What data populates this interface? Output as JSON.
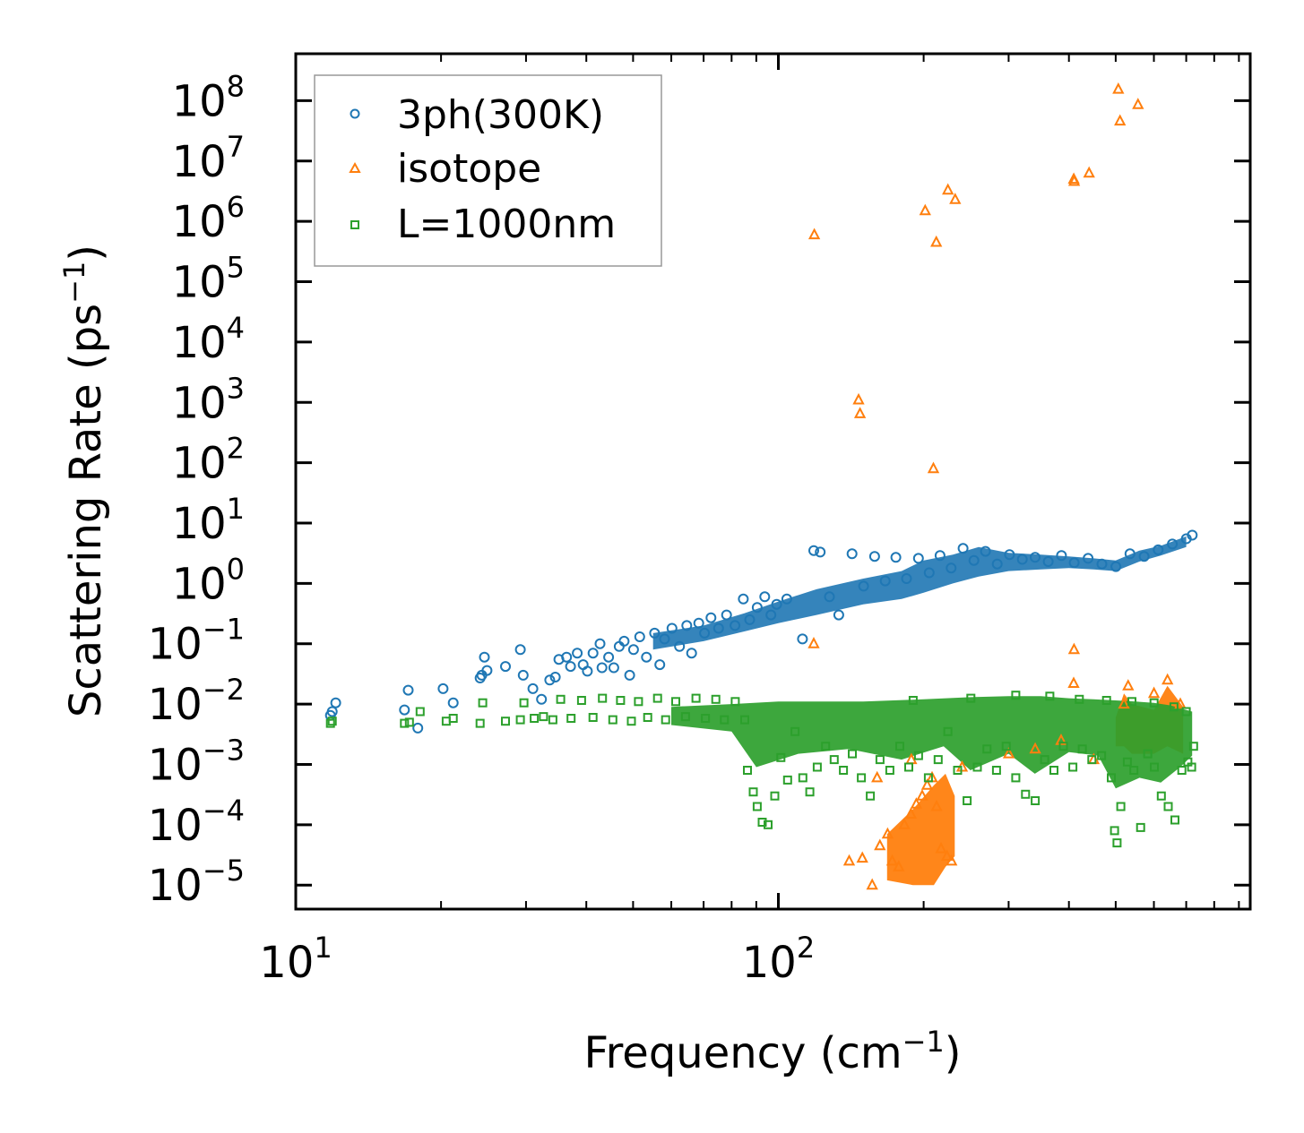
{
  "chart_data": {
    "type": "scatter",
    "title": "",
    "xlabel": "Frequency (cm",
    "xlabel_exp": "−1",
    "xlabel_close": ")",
    "ylabel": "Scattering Rate (ps",
    "ylabel_exp": "−1",
    "ylabel_close": ")",
    "xscale": "log",
    "yscale": "log",
    "xlim": [
      10,
      950
    ],
    "ylim": [
      4e-06,
      600000000
    ],
    "x_ticks": [
      {
        "value": 10,
        "base": "10",
        "exp": "1"
      },
      {
        "value": 100,
        "base": "10",
        "exp": "2"
      }
    ],
    "y_ticks": [
      {
        "value": 100000000.0,
        "base": "10",
        "exp": "8"
      },
      {
        "value": 10000000.0,
        "base": "10",
        "exp": "7"
      },
      {
        "value": 1000000.0,
        "base": "10",
        "exp": "6"
      },
      {
        "value": 100000.0,
        "base": "10",
        "exp": "5"
      },
      {
        "value": 10000.0,
        "base": "10",
        "exp": "4"
      },
      {
        "value": 1000.0,
        "base": "10",
        "exp": "3"
      },
      {
        "value": 100.0,
        "base": "10",
        "exp": "2"
      },
      {
        "value": 10.0,
        "base": "10",
        "exp": "1"
      },
      {
        "value": 1.0,
        "base": "10",
        "exp": "0"
      },
      {
        "value": 0.1,
        "base": "10",
        "exp": "−1"
      },
      {
        "value": 0.01,
        "base": "10",
        "exp": "−2"
      },
      {
        "value": 0.001,
        "base": "10",
        "exp": "−3"
      },
      {
        "value": 0.0001,
        "base": "10",
        "exp": "−4"
      },
      {
        "value": 1e-05,
        "base": "10",
        "exp": "−5"
      }
    ],
    "legend_position": "top-left",
    "series": [
      {
        "name": "3ph(300K)",
        "marker": "circle",
        "color": "#1f77b4",
        "points": [
          [
            11.8,
            0.0065
          ],
          [
            11.9,
            0.0075
          ],
          [
            12.1,
            0.0105
          ],
          [
            16.8,
            0.008
          ],
          [
            17.1,
            0.017
          ],
          [
            17.9,
            0.004
          ],
          [
            20.2,
            0.018
          ],
          [
            21.2,
            0.0105
          ],
          [
            24.1,
            0.027
          ],
          [
            24.3,
            0.03
          ],
          [
            24.6,
            0.06
          ],
          [
            24.9,
            0.036
          ],
          [
            27.2,
            0.042
          ],
          [
            29.2,
            0.08
          ],
          [
            29.6,
            0.03
          ],
          [
            31,
            0.018
          ],
          [
            32.3,
            0.012
          ],
          [
            33.6,
            0.025
          ],
          [
            34.5,
            0.028
          ],
          [
            35.1,
            0.055
          ],
          [
            36.4,
            0.06
          ],
          [
            37.1,
            0.042
          ],
          [
            38.3,
            0.07
          ],
          [
            39.4,
            0.045
          ],
          [
            40.2,
            0.035
          ],
          [
            41.3,
            0.07
          ],
          [
            42.7,
            0.1
          ],
          [
            43.1,
            0.04
          ],
          [
            44.5,
            0.06
          ],
          [
            45.6,
            0.04
          ],
          [
            46.8,
            0.09
          ],
          [
            47.9,
            0.11
          ],
          [
            49.2,
            0.03
          ],
          [
            50.1,
            0.08
          ],
          [
            51.6,
            0.13
          ],
          [
            53.3,
            0.06
          ],
          [
            55.4,
            0.15
          ],
          [
            56.8,
            0.045
          ],
          [
            58.1,
            0.12
          ],
          [
            60.2,
            0.18
          ],
          [
            62.4,
            0.09
          ],
          [
            64.6,
            0.2
          ],
          [
            66.1,
            0.07
          ],
          [
            68.4,
            0.22
          ],
          [
            70.3,
            0.15
          ],
          [
            72.5,
            0.27
          ],
          [
            75.2,
            0.18
          ],
          [
            78.1,
            0.3
          ],
          [
            81.3,
            0.2
          ],
          [
            84.6,
            0.55
          ],
          [
            87.2,
            0.25
          ],
          [
            90.4,
            0.4
          ],
          [
            93.7,
            0.6
          ],
          [
            96.5,
            0.3
          ],
          [
            99.2,
            0.45
          ],
          [
            104.1,
            0.55
          ],
          [
            112.2,
            0.12
          ],
          [
            118.4,
            3.5
          ],
          [
            122.1,
            3.3
          ],
          [
            127.6,
            0.6
          ],
          [
            133.4,
            0.3
          ],
          [
            142.1,
            3.1
          ],
          [
            150.2,
            0.9
          ],
          [
            158.3,
            2.8
          ],
          [
            166.5,
            1.1
          ],
          [
            175.2,
            2.7
          ],
          [
            184.3,
            1.2
          ],
          [
            195.1,
            2.6
          ],
          [
            205.4,
            1.5
          ],
          [
            216.3,
            2.9
          ],
          [
            228.1,
            1.8
          ],
          [
            241.4,
            3.8
          ],
          [
            254.2,
            2.4
          ],
          [
            268.6,
            3.4
          ],
          [
            284.1,
            2.1
          ],
          [
            301.3,
            3
          ],
          [
            320.2,
            2.5
          ],
          [
            340.5,
            2.7
          ],
          [
            362.4,
            2.3
          ],
          [
            386.1,
            2.9
          ],
          [
            410.2,
            2.2
          ],
          [
            438.3,
            2.6
          ],
          [
            468.1,
            2.1
          ],
          [
            500.4,
            1.9
          ],
          [
            535.2,
            3.1
          ],
          [
            572.6,
            2.8
          ],
          [
            612.4,
            3.6
          ],
          [
            655.2,
            4.5
          ],
          [
            700.3,
            5.5
          ],
          [
            720.5,
            6.3
          ]
        ]
      },
      {
        "name": "isotope",
        "marker": "triangle",
        "color": "#ff7f0e",
        "points": [
          [
            118.7,
            600000
          ],
          [
            146.6,
            1100
          ],
          [
            147.6,
            650
          ],
          [
            201.5,
            1500000
          ],
          [
            212.4,
            450000
          ],
          [
            209.5,
            80
          ],
          [
            224.6,
            3300000
          ],
          [
            232.5,
            2300000
          ],
          [
            409.4,
            5000000
          ],
          [
            410.2,
            4600000
          ],
          [
            440.3,
            6300000
          ],
          [
            506.2,
            155000000
          ],
          [
            510.4,
            46000000
          ],
          [
            556.3,
            86000000
          ],
          [
            118.4,
            0.1
          ],
          [
            409.8,
            0.08
          ],
          [
            409.1,
            0.022
          ],
          [
            140.2,
            2.5e-05
          ],
          [
            149.3,
            2.8e-05
          ],
          [
            156.5,
            1e-05
          ],
          [
            162.3,
            4.5e-05
          ],
          [
            168.4,
            7e-05
          ],
          [
            172.1,
            2.5e-05
          ],
          [
            177.6,
            2e-05
          ],
          [
            182.4,
            0.0001
          ],
          [
            188.2,
            0.00015
          ],
          [
            193.1,
            0.00022
          ],
          [
            198.6,
            0.0003
          ],
          [
            203.4,
            0.00045
          ],
          [
            208.2,
            0.0006
          ],
          [
            212.7,
            0.0002
          ],
          [
            217.3,
            4e-05
          ],
          [
            223.5,
            3e-05
          ],
          [
            228.4,
            2.5e-05
          ],
          [
            160.2,
            0.0006
          ],
          [
            188.6,
            0.0012
          ],
          [
            240.3,
            0.0009
          ],
          [
            300.2,
            0.0015
          ],
          [
            340.6,
            0.0018
          ],
          [
            385.4,
            0.0025
          ],
          [
            450.3,
            0.0012
          ],
          [
            520.1,
            0.01
          ],
          [
            530.6,
            0.02
          ],
          [
            600.2,
            0.015
          ],
          [
            640.3,
            0.025
          ],
          [
            680.5,
            0.01
          ]
        ]
      },
      {
        "name": "L=1000nm",
        "marker": "square",
        "color": "#2ca02c",
        "points": [
          [
            11.8,
            0.0048
          ],
          [
            11.9,
            0.0052
          ],
          [
            16.8,
            0.0048
          ],
          [
            17.2,
            0.005
          ],
          [
            18.1,
            0.0075
          ],
          [
            20.5,
            0.0052
          ],
          [
            21.2,
            0.0058
          ],
          [
            24.1,
            0.0048
          ],
          [
            24.4,
            0.0105
          ],
          [
            27.2,
            0.0052
          ],
          [
            29.2,
            0.0055
          ],
          [
            29.7,
            0.0105
          ],
          [
            31.2,
            0.0058
          ],
          [
            32.6,
            0.0062
          ],
          [
            34.1,
            0.0055
          ],
          [
            35.4,
            0.012
          ],
          [
            37.2,
            0.0058
          ],
          [
            39.1,
            0.0115
          ],
          [
            41.3,
            0.006
          ],
          [
            43.2,
            0.0125
          ],
          [
            45.4,
            0.0055
          ],
          [
            47.1,
            0.0115
          ],
          [
            49.6,
            0.0052
          ],
          [
            51.3,
            0.011
          ],
          [
            53.6,
            0.006
          ],
          [
            56.2,
            0.0125
          ],
          [
            58.4,
            0.0055
          ],
          [
            61.3,
            0.011
          ],
          [
            64.2,
            0.0062
          ],
          [
            67.5,
            0.0125
          ],
          [
            70.6,
            0.0058
          ],
          [
            74.2,
            0.012
          ],
          [
            77.3,
            0.0055
          ],
          [
            81.4,
            0.011
          ],
          [
            85.2,
            0.0055
          ],
          [
            86.3,
            0.0008
          ],
          [
            88.7,
            0.00035
          ],
          [
            90.4,
            0.0002
          ],
          [
            92.6,
            0.00011
          ],
          [
            95.2,
            0.0001
          ],
          [
            98.3,
            0.0003
          ],
          [
            101.2,
            0.0013
          ],
          [
            104.5,
            0.00055
          ],
          [
            108.3,
            0.0035
          ],
          [
            112.4,
            0.0006
          ],
          [
            116.2,
            0.00035
          ],
          [
            120.4,
            0.0009
          ],
          [
            125.3,
            0.002
          ],
          [
            130.5,
            0.0012
          ],
          [
            136.4,
            0.0008
          ],
          [
            142.3,
            0.0015
          ],
          [
            148.6,
            0.0006
          ],
          [
            155.1,
            0.0003
          ],
          [
            162.4,
            0.0012
          ],
          [
            170.2,
            0.0008
          ],
          [
            178.5,
            0.002
          ],
          [
            186.3,
            0.0009
          ],
          [
            195.2,
            0.0014
          ],
          [
            204.6,
            0.0006
          ],
          [
            214.3,
            0.0012
          ],
          [
            224.5,
            0.0035
          ],
          [
            235.2,
            0.0008
          ],
          [
            246.1,
            0.00025
          ],
          [
            258.4,
            0.0009
          ],
          [
            270.6,
            0.0018
          ],
          [
            283.2,
            0.0008
          ],
          [
            296.5,
            0.002
          ],
          [
            310.4,
            0.0006
          ],
          [
            325.2,
            0.00032
          ],
          [
            340.6,
            0.00025
          ],
          [
            356.3,
            0.0012
          ],
          [
            372.4,
            0.0008
          ],
          [
            389.5,
            0.002
          ],
          [
            407.6,
            0.0009
          ],
          [
            426.3,
            0.0018
          ],
          [
            446.2,
            0.0012
          ],
          [
            467.4,
            0.0014
          ],
          [
            489.6,
            0.0006
          ],
          [
            497.3,
            8e-05
          ],
          [
            503.2,
            5e-05
          ],
          [
            512.4,
            0.0002
          ],
          [
            528.6,
            0.0011
          ],
          [
            545.3,
            0.0008
          ],
          [
            563.2,
            9e-05
          ],
          [
            582.4,
            0.0015
          ],
          [
            601.3,
            0.0009
          ],
          [
            621.6,
            0.0003
          ],
          [
            642.4,
            0.0002
          ],
          [
            663.2,
            0.00012
          ],
          [
            685.4,
            0.0008
          ],
          [
            705.6,
            0.0011
          ],
          [
            718.3,
            0.0009
          ],
          [
            725.1,
            0.002
          ],
          [
            190.2,
            0.0115
          ],
          [
            250.6,
            0.0125
          ],
          [
            310.4,
            0.014
          ],
          [
            365.2,
            0.0135
          ],
          [
            420.3,
            0.012
          ],
          [
            478.6,
            0.0115
          ],
          [
            540.2,
            0.011
          ],
          [
            600.4,
            0.0105
          ],
          [
            660.3,
            0.009
          ],
          [
            700.2,
            0.0075
          ]
        ]
      }
    ]
  }
}
